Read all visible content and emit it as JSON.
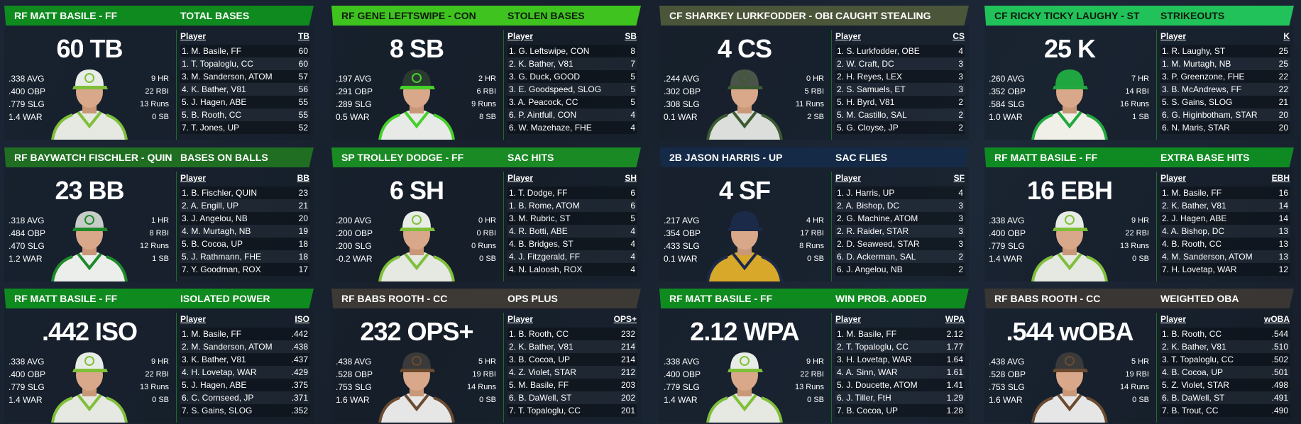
{
  "panels": [
    {
      "player": "RF MATT BASILE - FF",
      "stat_title": "TOTAL BASES",
      "big": "60 TB",
      "header_color": "#0f8a1f",
      "header_text": "#ffffff",
      "cap": "#e8ece6",
      "jersey": "#e6e8e2",
      "trim": "#7fbf3a",
      "left_stats": [
        ".338 AVG",
        ".400 OBP",
        ".779 SLG",
        "1.4 WAR"
      ],
      "right_stats": [
        "9 HR",
        "22 RBI",
        "13 Runs",
        "0 SB"
      ],
      "col": "TB",
      "rows": [
        [
          "1. M. Basile, FF",
          "60"
        ],
        [
          "1. T. Topaloglu, CC",
          "60"
        ],
        [
          "3. M. Sanderson, ATOM",
          "57"
        ],
        [
          "4. K. Bather, V81",
          "56"
        ],
        [
          "5. J. Hagen, ABE",
          "55"
        ],
        [
          "5. B. Rooth, CC",
          "55"
        ],
        [
          "7. T. Jones, UP",
          "52"
        ]
      ]
    },
    {
      "player": "RF GENE LEFTSWIPE - CON",
      "stat_title": "STOLEN BASES",
      "big": "8 SB",
      "header_color": "#3fc41f",
      "header_text": "#0d1a0d",
      "cap": "#2a3a30",
      "jersey": "#e8eae8",
      "trim": "#45d02a",
      "left_stats": [
        ".197 AVG",
        ".291 OBP",
        ".289 SLG",
        "0.5 WAR"
      ],
      "right_stats": [
        "2 HR",
        "6 RBI",
        "9 Runs",
        "8 SB"
      ],
      "col": "SB",
      "rows": [
        [
          "1. G. Leftswipe, CON",
          "8"
        ],
        [
          "2. K. Bather, V81",
          "7"
        ],
        [
          "3. G. Duck, GOOD",
          "5"
        ],
        [
          "3. E. Goodspeed, SLOG",
          "5"
        ],
        [
          "3. A. Peacock, CC",
          "5"
        ],
        [
          "6. P. Aintfull, CON",
          "4"
        ],
        [
          "6. W. Mazehaze, FHE",
          "4"
        ]
      ]
    },
    {
      "player": "CF SHARKEY LURKFODDER - OBE",
      "stat_title": "CAUGHT STEALING",
      "big": "4 CS",
      "header_color": "#4b5539",
      "header_text": "#ffffff",
      "cap": "#4a5448",
      "jersey": "#dcdedb",
      "trim": "#3c5a32",
      "left_stats": [
        ".244 AVG",
        ".302 OBP",
        ".308 SLG",
        "0.1 WAR"
      ],
      "right_stats": [
        "0 HR",
        "5 RBI",
        "11 Runs",
        "2 SB"
      ],
      "col": "CS",
      "rows": [
        [
          "1. S. Lurkfodder, OBE",
          "4"
        ],
        [
          "2. W. Craft, DC",
          "3"
        ],
        [
          "2. H. Reyes, LEX",
          "3"
        ],
        [
          "2. S. Samuels, ET",
          "3"
        ],
        [
          "5. H. Byrd, V81",
          "2"
        ],
        [
          "5. M. Castillo, SAL",
          "2"
        ],
        [
          "5. G. Cloyse, JP",
          "2"
        ]
      ]
    },
    {
      "player": "CF RICKY TICKY LAUGHY - ST",
      "stat_title": "STRIKEOUTS",
      "big": "25 K",
      "header_color": "#22c25a",
      "header_text": "#0d1a0d",
      "cap": "#1fa640",
      "jersey": "#f0f0e8",
      "trim": "#21a83e",
      "left_stats": [
        ".260 AVG",
        ".352 OBP",
        ".584 SLG",
        "1.0 WAR"
      ],
      "right_stats": [
        "7 HR",
        "14 RBI",
        "16 Runs",
        "1 SB"
      ],
      "col": "K",
      "rows": [
        [
          "1. R. Laughy, ST",
          "25"
        ],
        [
          "1. M. Murtagh, NB",
          "25"
        ],
        [
          "3. P. Greenzone, FHE",
          "22"
        ],
        [
          "3. B. McAndrews, FF",
          "22"
        ],
        [
          "5. S. Gains, SLOG",
          "21"
        ],
        [
          "6. G. Higinbotham, STAR",
          "20"
        ],
        [
          "6. N. Maris, STAR",
          "20"
        ]
      ]
    },
    {
      "player": "RF BAYWATCH FISCHLER - QUIN",
      "stat_title": "BASES ON BALLS",
      "big": "23 BB",
      "header_color": "#1f6e22",
      "header_text": "#ffffff",
      "cap": "#c8ccc8",
      "jersey": "#eceeec",
      "trim": "#1f8a2a",
      "left_stats": [
        ".318 AVG",
        ".484 OBP",
        ".470 SLG",
        "1.2 WAR"
      ],
      "right_stats": [
        "1 HR",
        "8 RBI",
        "12 Runs",
        "1 SB"
      ],
      "col": "BB",
      "rows": [
        [
          "1. B. Fischler, QUIN",
          "23"
        ],
        [
          "2. A. Engill, UP",
          "21"
        ],
        [
          "3. J. Angelou, NB",
          "20"
        ],
        [
          "4. M. Murtagh, NB",
          "19"
        ],
        [
          "5. B. Cocoa, UP",
          "18"
        ],
        [
          "5. J. Rathmann, FHE",
          "18"
        ],
        [
          "7. Y. Goodman, ROX",
          "17"
        ]
      ]
    },
    {
      "player": "SP TROLLEY DODGE - FF",
      "stat_title": "SAC HITS",
      "big": "6 SH",
      "header_color": "#1a8a24",
      "header_text": "#ffffff",
      "cap": "#e8ece6",
      "jersey": "#e6e8e2",
      "trim": "#7fbf3a",
      "left_stats": [
        ".200 AVG",
        ".200 OBP",
        ".200 SLG",
        "-0.2 WAR"
      ],
      "right_stats": [
        "0 HR",
        "0 RBI",
        "0 Runs",
        "0 SB"
      ],
      "col": "SH",
      "rows": [
        [
          "1. T. Dodge, FF",
          "6"
        ],
        [
          "1. B. Rome, ATOM",
          "6"
        ],
        [
          "3. M. Rubric, ST",
          "5"
        ],
        [
          "4. R. Botti, ABE",
          "4"
        ],
        [
          "4. B. Bridges, ST",
          "4"
        ],
        [
          "4. J. Fitzgerald, FF",
          "4"
        ],
        [
          "4. N. Laloosh, ROX",
          "4"
        ]
      ]
    },
    {
      "player": "2B JASON HARRIS - UP",
      "stat_title": "SAC FLIES",
      "big": "4 SF",
      "header_color": "#142a46",
      "header_text": "#ffffff",
      "cap": "#1c2a4a",
      "jersey": "#d8a82a",
      "trim": "#1c2a4a",
      "left_stats": [
        ".217 AVG",
        ".354 OBP",
        ".433 SLG",
        "0.1 WAR"
      ],
      "right_stats": [
        "4 HR",
        "17 RBI",
        "8 Runs",
        "0 SB"
      ],
      "col": "SF",
      "rows": [
        [
          "1. J. Harris, UP",
          "4"
        ],
        [
          "2. A. Bishop, DC",
          "3"
        ],
        [
          "2. G. Machine, ATOM",
          "3"
        ],
        [
          "2. R. Raider, STAR",
          "3"
        ],
        [
          "2. D. Seaweed, STAR",
          "3"
        ],
        [
          "6. D. Ackerman, SAL",
          "2"
        ],
        [
          "6. J. Angelou, NB",
          "2"
        ]
      ]
    },
    {
      "player": "RF MATT BASILE - FF",
      "stat_title": "EXTRA BASE HITS",
      "big": "16 EBH",
      "header_color": "#0f8a22",
      "header_text": "#ffffff",
      "cap": "#e8ece6",
      "jersey": "#e6e8e2",
      "trim": "#7fbf3a",
      "left_stats": [
        ".338 AVG",
        ".400 OBP",
        ".779 SLG",
        "1.4 WAR"
      ],
      "right_stats": [
        "9 HR",
        "22 RBI",
        "13 Runs",
        "0 SB"
      ],
      "col": "EBH",
      "rows": [
        [
          "1. M. Basile, FF",
          "16"
        ],
        [
          "2. K. Bather, V81",
          "14"
        ],
        [
          "2. J. Hagen, ABE",
          "14"
        ],
        [
          "4. A. Bishop, DC",
          "13"
        ],
        [
          "4. B. Rooth, CC",
          "13"
        ],
        [
          "4. M. Sanderson, ATOM",
          "13"
        ],
        [
          "7. H. Lovetap, WAR",
          "12"
        ]
      ]
    },
    {
      "player": "RF MATT BASILE - FF",
      "stat_title": "ISOLATED POWER",
      "big": ".442 ISO",
      "header_color": "#0f8a1f",
      "header_text": "#ffffff",
      "cap": "#e8ece6",
      "jersey": "#e6e8e2",
      "trim": "#7fbf3a",
      "left_stats": [
        ".338 AVG",
        ".400 OBP",
        ".779 SLG",
        "1.4 WAR"
      ],
      "right_stats": [
        "9 HR",
        "22 RBI",
        "13 Runs",
        "0 SB"
      ],
      "col": "ISO",
      "rows": [
        [
          "1. M. Basile, FF",
          ".442"
        ],
        [
          "2. M. Sanderson, ATOM",
          ".438"
        ],
        [
          "3. K. Bather, V81",
          ".437"
        ],
        [
          "4. H. Lovetap, WAR",
          ".429"
        ],
        [
          "5. J. Hagen, ABE",
          ".375"
        ],
        [
          "6. C. Cornseed, JP",
          ".371"
        ],
        [
          "7. S. Gains, SLOG",
          ".352"
        ]
      ]
    },
    {
      "player": "RF BABS ROOTH - CC",
      "stat_title": "OPS PLUS",
      "big": "232 OPS+",
      "header_color": "#3d3935",
      "header_text": "#ffffff",
      "cap": "#3a3a3a",
      "jersey": "#e6e6e6",
      "trim": "#6a4a30",
      "left_stats": [
        ".438 AVG",
        ".528 OBP",
        ".753 SLG",
        "1.6 WAR"
      ],
      "right_stats": [
        "5 HR",
        "19 RBI",
        "14 Runs",
        "0 SB"
      ],
      "col": "OPS+",
      "rows": [
        [
          "1. B. Rooth, CC",
          "232"
        ],
        [
          "2. K. Bather, V81",
          "214"
        ],
        [
          "3. B. Cocoa, UP",
          "214"
        ],
        [
          "4. Z. Violet, STAR",
          "212"
        ],
        [
          "5. M. Basile, FF",
          "203"
        ],
        [
          "6. B. DaWell, ST",
          "202"
        ],
        [
          "7. T. Topaloglu, CC",
          "201"
        ]
      ]
    },
    {
      "player": "RF MATT BASILE - FF",
      "stat_title": "WIN PROB. ADDED",
      "big": "2.12 WPA",
      "header_color": "#0f8a1f",
      "header_text": "#ffffff",
      "cap": "#e8ece6",
      "jersey": "#e6e8e2",
      "trim": "#7fbf3a",
      "left_stats": [
        ".338 AVG",
        ".400 OBP",
        ".779 SLG",
        "1.4 WAR"
      ],
      "right_stats": [
        "9 HR",
        "22 RBI",
        "13 Runs",
        "0 SB"
      ],
      "col": "WPA",
      "rows": [
        [
          "1. M. Basile, FF",
          "2.12"
        ],
        [
          "2. T. Topaloglu, CC",
          "1.77"
        ],
        [
          "3. H. Lovetap, WAR",
          "1.64"
        ],
        [
          "4. A. Sinn, WAR",
          "1.61"
        ],
        [
          "5. J. Doucette, ATOM",
          "1.41"
        ],
        [
          "6. J. Tiller, FtH",
          "1.29"
        ],
        [
          "7. B. Cocoa, UP",
          "1.28"
        ]
      ]
    },
    {
      "player": "RF BABS ROOTH - CC",
      "stat_title": "WEIGHTED OBA",
      "big": ".544 wOBA",
      "header_color": "#3a3634",
      "header_text": "#ffffff",
      "cap": "#3a3a3a",
      "jersey": "#e6e6e6",
      "trim": "#6a4a30",
      "left_stats": [
        ".438 AVG",
        ".528 OBP",
        ".753 SLG",
        "1.6 WAR"
      ],
      "right_stats": [
        "5 HR",
        "19 RBI",
        "14 Runs",
        "0 SB"
      ],
      "col": "wOBA",
      "rows": [
        [
          "1. B. Rooth, CC",
          ".544"
        ],
        [
          "2. K. Bather, V81",
          ".510"
        ],
        [
          "3. T. Topaloglu, CC",
          ".502"
        ],
        [
          "4. B. Cocoa, UP",
          ".501"
        ],
        [
          "5. Z. Violet, STAR",
          ".498"
        ],
        [
          "6. B. DaWell, ST",
          ".491"
        ],
        [
          "7. B. Trout, CC",
          ".490"
        ]
      ]
    }
  ],
  "table_player_header": "Player"
}
